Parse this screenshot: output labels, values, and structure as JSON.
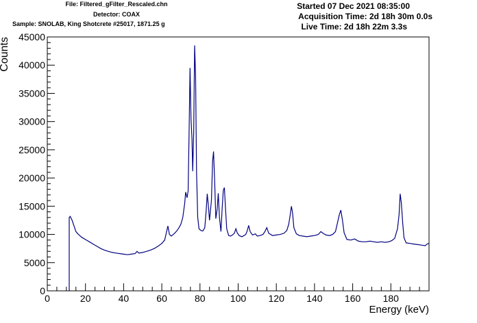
{
  "header": {
    "file": "File: Filtered_gFilter_Rescaled.chn",
    "detector": "Detector: COAX",
    "sample": "Sample: SNOLAB, King Shotcrete #25017, 1871.25 g",
    "started": "Started 07 Dec 2021 08:35:00",
    "acquisition": "Acquisition Time: 2d 18h 30m 0.0s",
    "live": "Live Time: 2d 18h 22m 3.3s"
  },
  "chart_data": {
    "type": "line",
    "title": "",
    "xlabel": "Energy (keV)",
    "ylabel": "Counts",
    "xlim": [
      0,
      200
    ],
    "ylim": [
      0,
      45000
    ],
    "xticks": [
      0,
      20,
      40,
      60,
      80,
      100,
      120,
      140,
      160,
      180
    ],
    "yticks": [
      0,
      5000,
      10000,
      15000,
      20000,
      25000,
      30000,
      35000,
      40000,
      45000
    ],
    "grid": false,
    "line_color": "#000080",
    "series": [
      {
        "points": [
          [
            11.5,
            0
          ],
          [
            11.5,
            13000
          ],
          [
            12,
            13200
          ],
          [
            13,
            12500
          ],
          [
            14,
            11500
          ],
          [
            15,
            10500
          ],
          [
            16,
            10100
          ],
          [
            17,
            9800
          ],
          [
            18,
            9500
          ],
          [
            19,
            9300
          ],
          [
            20,
            9100
          ],
          [
            22,
            8700
          ],
          [
            24,
            8300
          ],
          [
            26,
            7900
          ],
          [
            28,
            7500
          ],
          [
            30,
            7200
          ],
          [
            32,
            7000
          ],
          [
            34,
            6800
          ],
          [
            36,
            6700
          ],
          [
            38,
            6600
          ],
          [
            40,
            6500
          ],
          [
            42,
            6400
          ],
          [
            44,
            6500
          ],
          [
            46,
            6600
          ],
          [
            47,
            7000
          ],
          [
            48,
            6700
          ],
          [
            50,
            6800
          ],
          [
            52,
            7000
          ],
          [
            54,
            7200
          ],
          [
            56,
            7500
          ],
          [
            58,
            7900
          ],
          [
            60,
            8400
          ],
          [
            61.5,
            9000
          ],
          [
            62.5,
            10500
          ],
          [
            63.2,
            11500
          ],
          [
            64,
            10000
          ],
          [
            65,
            9700
          ],
          [
            66,
            10000
          ],
          [
            67,
            10300
          ],
          [
            68,
            10700
          ],
          [
            69,
            11200
          ],
          [
            70,
            11800
          ],
          [
            71,
            13000
          ],
          [
            72,
            15500
          ],
          [
            72.5,
            17500
          ],
          [
            73.2,
            16500
          ],
          [
            73.8,
            17700
          ],
          [
            74.3,
            28000
          ],
          [
            74.8,
            39500
          ],
          [
            75.3,
            30500
          ],
          [
            75.8,
            27000
          ],
          [
            76.2,
            21200
          ],
          [
            76.7,
            28000
          ],
          [
            77.2,
            43500
          ],
          [
            77.7,
            38000
          ],
          [
            78.2,
            21000
          ],
          [
            78.8,
            13000
          ],
          [
            79.5,
            11000
          ],
          [
            80.5,
            10700
          ],
          [
            81.5,
            10600
          ],
          [
            82.5,
            11200
          ],
          [
            83.2,
            14000
          ],
          [
            83.8,
            17200
          ],
          [
            84.4,
            15000
          ],
          [
            85,
            12500
          ],
          [
            86,
            16000
          ],
          [
            86.6,
            23000
          ],
          [
            87.1,
            24700
          ],
          [
            87.7,
            19500
          ],
          [
            88.3,
            12800
          ],
          [
            89,
            14500
          ],
          [
            89.6,
            17300
          ],
          [
            90.2,
            13000
          ],
          [
            91,
            10500
          ],
          [
            91.6,
            14500
          ],
          [
            92.2,
            17800
          ],
          [
            92.8,
            18300
          ],
          [
            93.4,
            14500
          ],
          [
            94,
            11000
          ],
          [
            95,
            9800
          ],
          [
            96,
            9700
          ],
          [
            97,
            9900
          ],
          [
            98,
            10200
          ],
          [
            98.8,
            11000
          ],
          [
            99.5,
            10300
          ],
          [
            100.5,
            9800
          ],
          [
            102,
            9600
          ],
          [
            104,
            10000
          ],
          [
            104.8,
            10700
          ],
          [
            105.5,
            11600
          ],
          [
            106.3,
            10500
          ],
          [
            107.5,
            9900
          ],
          [
            109,
            10100
          ],
          [
            110,
            9700
          ],
          [
            111.5,
            9800
          ],
          [
            113,
            10000
          ],
          [
            114,
            10500
          ],
          [
            115,
            11200
          ],
          [
            116,
            10200
          ],
          [
            118,
            9800
          ],
          [
            120,
            9900
          ],
          [
            122,
            10000
          ],
          [
            124,
            10200
          ],
          [
            125.5,
            10700
          ],
          [
            126.5,
            11800
          ],
          [
            127.3,
            13500
          ],
          [
            127.9,
            15000
          ],
          [
            128.5,
            13800
          ],
          [
            129.2,
            11200
          ],
          [
            130.5,
            10100
          ],
          [
            132,
            9800
          ],
          [
            134,
            9700
          ],
          [
            136,
            9600
          ],
          [
            138,
            9700
          ],
          [
            140,
            9800
          ],
          [
            142,
            10000
          ],
          [
            143.3,
            10500
          ],
          [
            144.5,
            10200
          ],
          [
            146,
            9900
          ],
          [
            148,
            9800
          ],
          [
            149.5,
            10000
          ],
          [
            151,
            10500
          ],
          [
            152,
            12000
          ],
          [
            153,
            13500
          ],
          [
            153.8,
            14300
          ],
          [
            154.6,
            12600
          ],
          [
            155.5,
            10300
          ],
          [
            157,
            9100
          ],
          [
            159,
            9000
          ],
          [
            161,
            9200
          ],
          [
            163,
            8800
          ],
          [
            165,
            8700
          ],
          [
            167,
            8700
          ],
          [
            169,
            8800
          ],
          [
            171,
            8700
          ],
          [
            173,
            8600
          ],
          [
            175,
            8700
          ],
          [
            177,
            8600
          ],
          [
            179,
            8700
          ],
          [
            180.5,
            8900
          ],
          [
            182,
            9300
          ],
          [
            183.5,
            11000
          ],
          [
            184.3,
            13500
          ],
          [
            184.9,
            17200
          ],
          [
            185.5,
            15600
          ],
          [
            186.2,
            12000
          ],
          [
            186.9,
            9400
          ],
          [
            188,
            8500
          ],
          [
            190,
            8400
          ],
          [
            192,
            8300
          ],
          [
            194,
            8200
          ],
          [
            196,
            8100
          ],
          [
            198,
            8000
          ],
          [
            199,
            8300
          ],
          [
            200,
            8400
          ]
        ]
      }
    ]
  }
}
